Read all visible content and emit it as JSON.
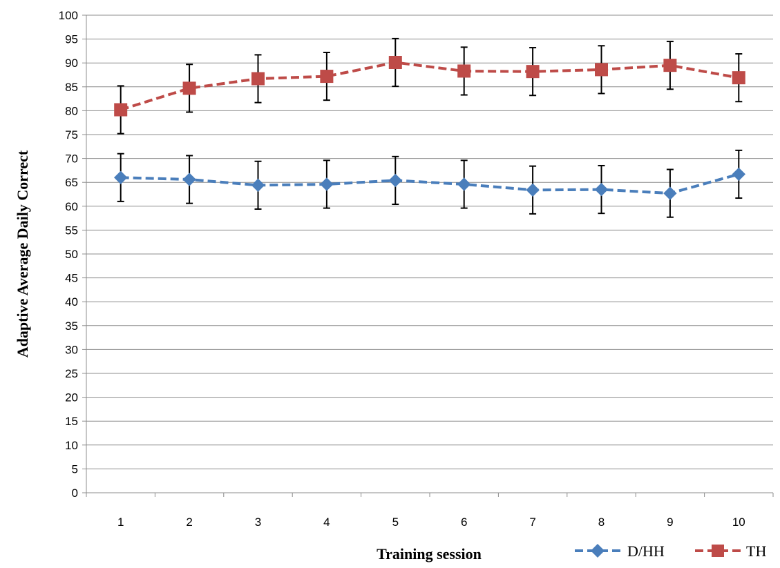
{
  "chart_data": {
    "type": "line",
    "title": "",
    "xlabel": "Training session",
    "ylabel": "Adaptive  Average Daily Correct",
    "categories": [
      "1",
      "2",
      "3",
      "4",
      "5",
      "6",
      "7",
      "8",
      "9",
      "10"
    ],
    "ylim": [
      0,
      100
    ],
    "y_ticks": [
      0,
      5,
      10,
      15,
      20,
      25,
      30,
      35,
      40,
      45,
      50,
      55,
      60,
      65,
      70,
      75,
      80,
      85,
      90,
      95,
      100
    ],
    "grid": "horizontal",
    "legend_position": "bottom-right",
    "error_bar": 5,
    "series": [
      {
        "name": "D/HH",
        "color": "#4a7ebb",
        "marker": "diamond",
        "line_style": "dashed",
        "values": [
          66.0,
          65.6,
          64.4,
          64.6,
          65.4,
          64.6,
          63.4,
          63.5,
          62.7,
          66.7
        ]
      },
      {
        "name": "TH",
        "color": "#be4b48",
        "marker": "square",
        "line_style": "dashed",
        "values": [
          80.2,
          84.7,
          86.7,
          87.2,
          90.1,
          88.3,
          88.2,
          88.6,
          89.5,
          86.9
        ]
      }
    ]
  }
}
